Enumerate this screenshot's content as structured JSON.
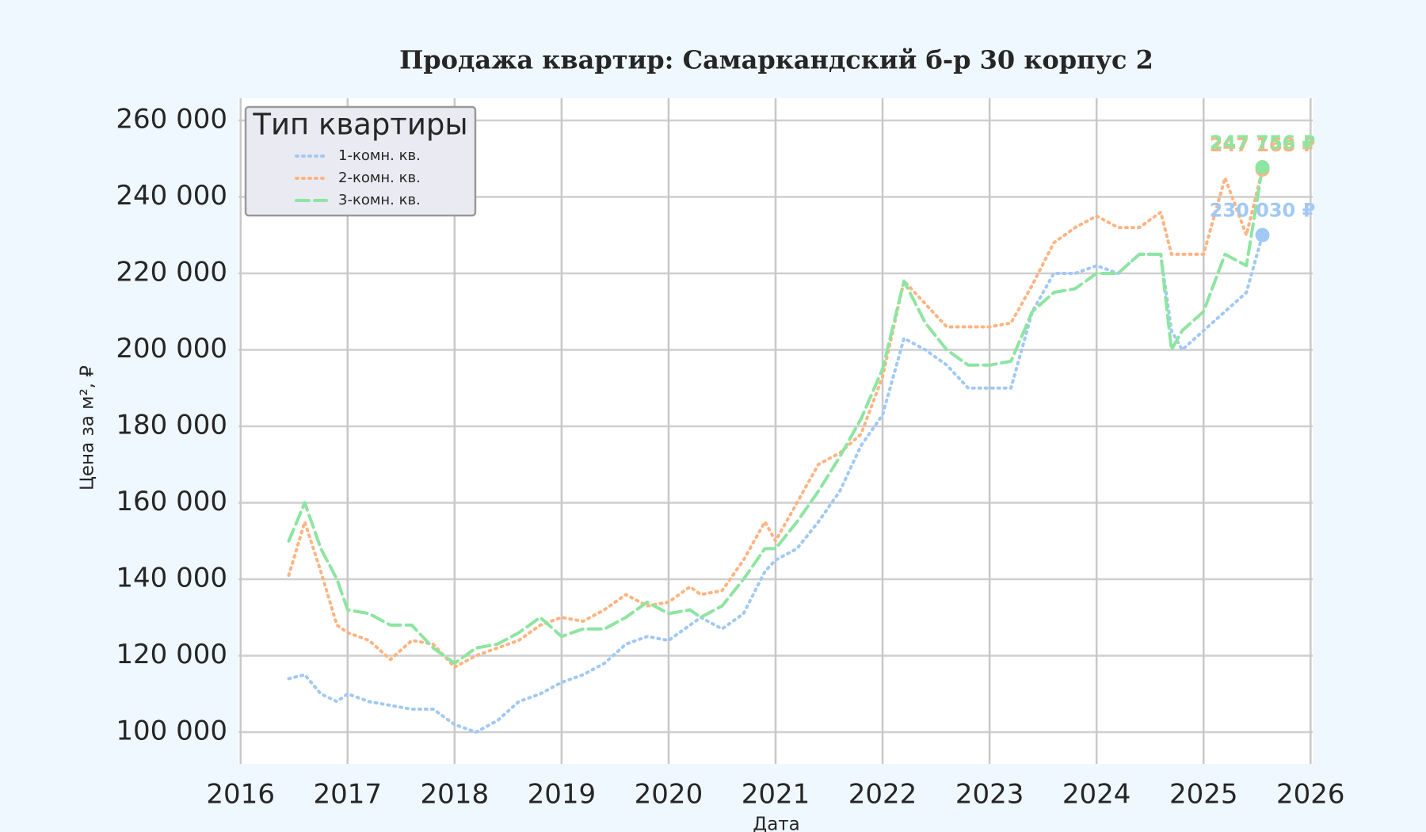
{
  "chart_data": {
    "type": "line",
    "title": "Продажа квартир: Самаркандский б-р 30 корпус 2",
    "x_label": "Дата",
    "y_label": "Цена за м², ₽",
    "legend_title": "Тип квартиры",
    "legend": "upper left",
    "grid": true,
    "xlim": [
      2015.98,
      2026.02
    ],
    "xticks": [
      2016,
      2017,
      2018,
      2019,
      2020,
      2021,
      2022,
      2023,
      2024,
      2025,
      2026
    ],
    "ylim": [
      91700,
      265800
    ],
    "yticks": [
      {
        "value": 100000,
        "label": "100 000"
      },
      {
        "value": 120000,
        "label": "120 000"
      },
      {
        "value": 140000,
        "label": "140 000"
      },
      {
        "value": 160000,
        "label": "160 000"
      },
      {
        "value": 180000,
        "label": "180 000"
      },
      {
        "value": 200000,
        "label": "200 000"
      },
      {
        "value": 220000,
        "label": "220 000"
      },
      {
        "value": 240000,
        "label": "240 000"
      },
      {
        "value": 260000,
        "label": "260 000"
      }
    ],
    "x": [
      2016.45,
      2016.6,
      2016.75,
      2016.9,
      2017.0,
      2017.2,
      2017.4,
      2017.6,
      2017.8,
      2018.0,
      2018.2,
      2018.4,
      2018.6,
      2018.8,
      2019.0,
      2019.2,
      2019.4,
      2019.6,
      2019.8,
      2020.0,
      2020.2,
      2020.3,
      2020.5,
      2020.7,
      2020.9,
      2021.0,
      2021.2,
      2021.4,
      2021.6,
      2021.8,
      2022.0,
      2022.2,
      2022.4,
      2022.6,
      2022.8,
      2023.0,
      2023.2,
      2023.4,
      2023.6,
      2023.8,
      2024.0,
      2024.2,
      2024.4,
      2024.6,
      2024.7,
      2024.8,
      2025.0,
      2025.2,
      2025.4,
      2025.55
    ],
    "series": [
      {
        "name": "1-комн. кв.",
        "color": "#a1c9f4",
        "dash": "dotted",
        "values": [
          114000,
          115000,
          110000,
          108000,
          110000,
          108000,
          107000,
          106000,
          106000,
          102000,
          100000,
          103000,
          108000,
          110000,
          113000,
          115000,
          118000,
          123000,
          125000,
          124000,
          128000,
          130000,
          127000,
          131000,
          142000,
          145000,
          148000,
          155000,
          163000,
          175000,
          183000,
          203000,
          200000,
          196000,
          190000,
          190000,
          190000,
          210000,
          220000,
          220000,
          222000,
          220000,
          225000,
          225000,
          205000,
          200000,
          205000,
          210000,
          215000,
          230030
        ],
        "value_labels": [
          null,
          null,
          null,
          null,
          null,
          null,
          null,
          null,
          null,
          null,
          null,
          null,
          null,
          null,
          null,
          null,
          null,
          null,
          null,
          null,
          null,
          null,
          null,
          null,
          null,
          null,
          null,
          null,
          null,
          null,
          null,
          null,
          null,
          null,
          null,
          null,
          null,
          null,
          null,
          null,
          null,
          null,
          null,
          null,
          null,
          null,
          null,
          null,
          null,
          "230 030 ₽"
        ]
      },
      {
        "name": "2-комн. кв.",
        "color": "#ffb482",
        "dash": "dotted",
        "values": [
          141000,
          155000,
          142000,
          128000,
          126000,
          124000,
          119000,
          124000,
          123000,
          117000,
          120000,
          122000,
          124000,
          128000,
          130000,
          129000,
          132000,
          136000,
          133000,
          134000,
          138000,
          136000,
          137000,
          145000,
          155000,
          150000,
          160000,
          170000,
          173000,
          178000,
          193000,
          218000,
          212000,
          206000,
          206000,
          206000,
          207000,
          217000,
          228000,
          232000,
          235000,
          232000,
          232000,
          236000,
          225000,
          225000,
          225000,
          245000,
          230000,
          247168
        ],
        "value_labels": [
          null,
          null,
          null,
          null,
          null,
          null,
          null,
          null,
          null,
          null,
          null,
          null,
          null,
          null,
          null,
          null,
          null,
          null,
          null,
          null,
          null,
          null,
          null,
          null,
          null,
          null,
          null,
          null,
          null,
          null,
          null,
          null,
          null,
          null,
          null,
          null,
          null,
          null,
          null,
          null,
          null,
          null,
          null,
          null,
          null,
          null,
          null,
          null,
          null,
          "247 168 ₽"
        ]
      },
      {
        "name": "3-комн. кв.",
        "color": "#8de5a1",
        "dash": "dashed",
        "values": [
          150000,
          160000,
          148000,
          140000,
          132000,
          131000,
          128000,
          128000,
          122000,
          118000,
          122000,
          123000,
          126000,
          130000,
          125000,
          127000,
          127000,
          130000,
          134000,
          131000,
          132000,
          130000,
          133000,
          140000,
          148000,
          148000,
          155000,
          163000,
          172000,
          182000,
          195000,
          218000,
          207000,
          200000,
          196000,
          196000,
          197000,
          210000,
          215000,
          216000,
          220000,
          220000,
          225000,
          225000,
          200000,
          205000,
          210000,
          225000,
          222000,
          247756
        ],
        "value_labels": [
          null,
          null,
          null,
          null,
          null,
          null,
          null,
          null,
          null,
          null,
          null,
          null,
          null,
          null,
          null,
          null,
          null,
          null,
          null,
          null,
          null,
          null,
          null,
          null,
          null,
          null,
          null,
          null,
          null,
          null,
          null,
          null,
          null,
          null,
          null,
          null,
          null,
          null,
          null,
          null,
          null,
          null,
          null,
          null,
          null,
          null,
          null,
          null,
          null,
          "247 756 ₽"
        ]
      }
    ]
  }
}
